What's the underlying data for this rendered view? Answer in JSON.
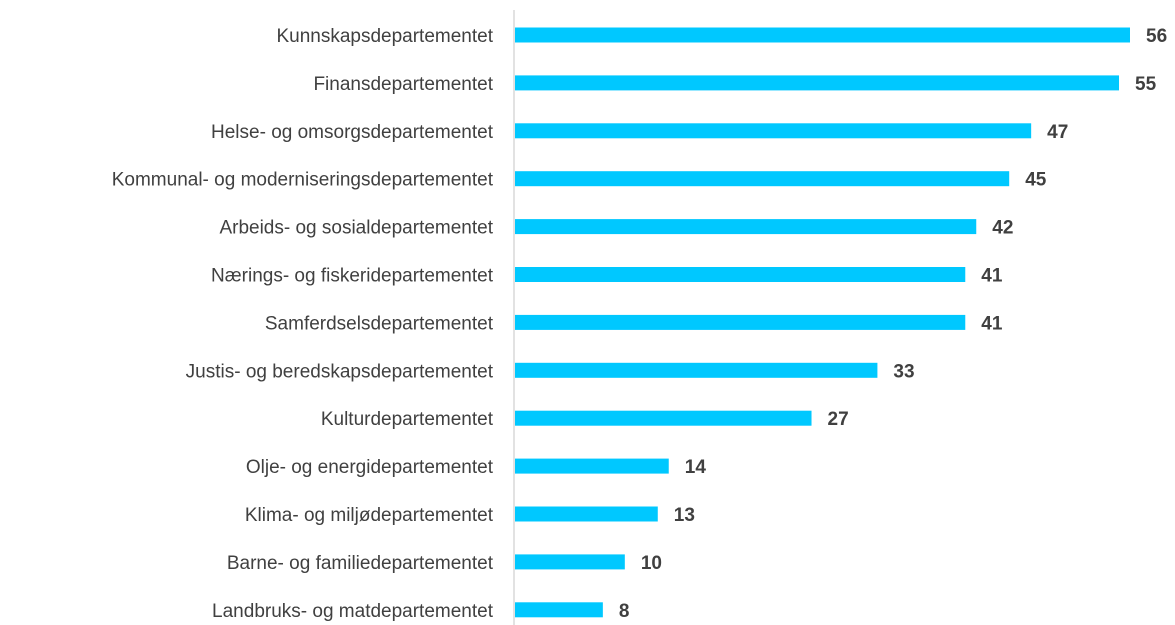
{
  "chart_data": {
    "type": "bar",
    "orientation": "horizontal",
    "categories": [
      "Kunnskapsdepartementet",
      "Finansdepartementet",
      "Helse- og omsorgsdepartementet",
      "Kommunal- og moderniseringsdepartementet",
      "Arbeids- og sosialdepartementet",
      "Nærings- og fiskeridepartementet",
      "Samferdselsdepartementet",
      "Justis- og beredskapsdepartementet",
      "Kulturdepartementet",
      "Olje- og energidepartementet",
      "Klima- og miljødepartementet",
      "Barne- og familiedepartementet",
      "Landbruks- og matdepartementet"
    ],
    "values": [
      56,
      55,
      47,
      45,
      42,
      41,
      41,
      33,
      27,
      14,
      13,
      10,
      8
    ],
    "value_labels": [
      "56",
      "55",
      "47",
      "45",
      "42",
      "41",
      "41",
      "33",
      "27",
      "14",
      "13",
      "10",
      "8"
    ],
    "title": "",
    "xlabel": "",
    "ylabel": "",
    "xlim": [
      0,
      56
    ],
    "grid": false,
    "legend": false,
    "colors": {
      "bar": "#00c8ff",
      "axis": "#d9d9d9",
      "text": "#404040"
    }
  }
}
